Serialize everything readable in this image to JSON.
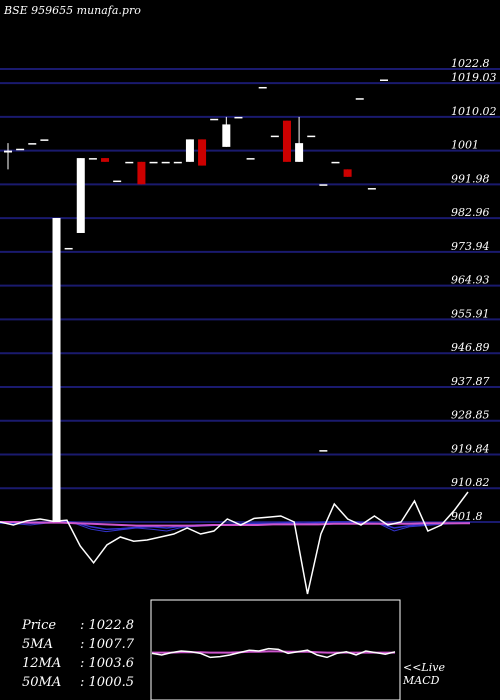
{
  "chart_data": {
    "type": "candlestick",
    "title": "BSE 959655 munafa.pro",
    "ylim": [
      901.8,
      1022.8
    ],
    "y_ticks": [
      "1022.8",
      "1019.03",
      "1010.02",
      "1001",
      "991.98",
      "982.96",
      "973.94",
      "964.93",
      "955.91",
      "946.89",
      "937.87",
      "928.85",
      "919.84",
      "910.82",
      "901.8"
    ],
    "grid": true,
    "colors": {
      "background": "#000000",
      "grid": "#1a1a6e",
      "up": "#ffffff",
      "down": "#cc0000",
      "ma_short": "#3333cc",
      "ma_long": "#cc55cc",
      "macd": "#ffffff"
    },
    "candles": [
      {
        "open": 1000.5,
        "high": 1003.0,
        "low": 996.0,
        "close": 1001.0
      },
      {
        "open": 1001.5,
        "high": 1001.5,
        "low": 1001.5,
        "close": 1001.5
      },
      {
        "open": 1003.0,
        "high": 1003.0,
        "low": 1003.0,
        "close": 1003.0
      },
      {
        "open": 1004.0,
        "high": 1004.0,
        "low": 1004.0,
        "close": 1004.0
      },
      {
        "open": 901.8,
        "high": 983.0,
        "low": 901.8,
        "close": 983.0
      },
      {
        "open": 975.0,
        "high": 975.0,
        "low": 975.0,
        "close": 975.0
      },
      {
        "open": 979.0,
        "high": 999.0,
        "low": 979.0,
        "close": 999.0
      },
      {
        "open": 999.0,
        "high": 999.0,
        "low": 999.0,
        "close": 999.0
      },
      {
        "open": 999.0,
        "high": 999.0,
        "low": 998.0,
        "close": 998.0
      },
      {
        "open": 993.0,
        "high": 993.0,
        "low": 993.0,
        "close": 993.0
      },
      {
        "open": 998.0,
        "high": 998.0,
        "low": 998.0,
        "close": 998.0
      },
      {
        "open": 998.0,
        "high": 998.0,
        "low": 992.0,
        "close": 992.0
      },
      {
        "open": 998.0,
        "high": 998.0,
        "low": 998.0,
        "close": 998.0
      },
      {
        "open": 998.0,
        "high": 998.0,
        "low": 998.0,
        "close": 998.0
      },
      {
        "open": 998.0,
        "high": 998.0,
        "low": 998.0,
        "close": 998.0
      },
      {
        "open": 998.0,
        "high": 1004.0,
        "low": 998.0,
        "close": 1004.0
      },
      {
        "open": 1004.0,
        "high": 1004.0,
        "low": 997.0,
        "close": 997.0
      },
      {
        "open": 1009.5,
        "high": 1009.5,
        "low": 1009.5,
        "close": 1009.5
      },
      {
        "open": 1002.0,
        "high": 1010.0,
        "low": 1002.0,
        "close": 1008.0
      },
      {
        "open": 1010.0,
        "high": 1010.0,
        "low": 1010.0,
        "close": 1010.0
      },
      {
        "open": 999.0,
        "high": 999.0,
        "low": 999.0,
        "close": 999.0
      },
      {
        "open": 1018.0,
        "high": 1018.0,
        "low": 1018.0,
        "close": 1018.0
      },
      {
        "open": 1005.0,
        "high": 1005.0,
        "low": 1005.0,
        "close": 1005.0
      },
      {
        "open": 1009.0,
        "high": 1009.0,
        "low": 998.0,
        "close": 998.0
      },
      {
        "open": 998.0,
        "high": 1010.0,
        "low": 998.0,
        "close": 1003.0
      },
      {
        "open": 1005.0,
        "high": 1005.0,
        "low": 1005.0,
        "close": 1005.0
      },
      {
        "open": 992.0,
        "high": 992.0,
        "low": 992.0,
        "close": 992.0
      },
      {
        "open": 998.0,
        "high": 998.0,
        "low": 998.0,
        "close": 998.0
      },
      {
        "open": 996.0,
        "high": 996.0,
        "low": 994.0,
        "close": 994.0
      },
      {
        "open": 1015.0,
        "high": 1015.0,
        "low": 1015.0,
        "close": 1015.0
      },
      {
        "open": 991.0,
        "high": 991.0,
        "low": 991.0,
        "close": 991.0
      },
      {
        "open": 1020.0,
        "high": 1020.0,
        "low": 1020.0,
        "close": 1020.0
      }
    ],
    "stray_points": [
      {
        "index": 26,
        "value": 921.0
      }
    ],
    "ma_series": [
      {
        "values": [
          -0.2,
          -0.3,
          -0.5,
          -0.2,
          -0.1,
          -0.3,
          -1.2,
          -1.6,
          -1.3,
          -1.0,
          -1.2,
          -1.5,
          -0.9,
          -0.7,
          -0.6,
          -0.5,
          -0.4,
          -0.3,
          -0.2,
          -0.2,
          -0.3,
          -0.1,
          0.0,
          0.0,
          -0.1,
          -0.3,
          -1.5,
          -0.8,
          -0.6,
          -0.4,
          -0.3,
          -0.2
        ]
      },
      {
        "values": [
          -0.1,
          -0.1,
          -0.2,
          -0.1,
          0.1,
          -0.1,
          -0.8,
          -1.2,
          -1.1,
          -0.9,
          -0.8,
          -1.0,
          -0.7,
          -0.5,
          -0.5,
          -0.4,
          -0.3,
          -0.2,
          -0.2,
          -0.1,
          -0.2,
          -0.1,
          0.0,
          0.0,
          -0.1,
          -0.2,
          -1.0,
          -0.6,
          -0.4,
          -0.3,
          -0.2,
          -0.1
        ]
      },
      {
        "values": [
          0.0,
          0.0,
          -0.1,
          -0.1,
          -0.1,
          -0.2,
          -0.3,
          -0.4,
          -0.5,
          -0.6,
          -0.6,
          -0.6,
          -0.6,
          -0.6,
          -0.5,
          -0.5,
          -0.5,
          -0.5,
          -0.4,
          -0.4,
          -0.4,
          -0.4,
          -0.3,
          -0.3,
          -0.3,
          -0.3,
          -0.3,
          -0.3,
          -0.2,
          -0.2,
          -0.2,
          -0.2
        ]
      }
    ],
    "macd_values": [
      0.0,
      -0.5,
      0.2,
      0.5,
      0.1,
      0.3,
      -4.0,
      -6.8,
      -3.8,
      -2.5,
      -3.2,
      -3.0,
      -2.5,
      -2.0,
      -1.0,
      -2.0,
      -1.5,
      0.5,
      -0.5,
      0.6,
      0.8,
      1.0,
      0.0,
      -12.0,
      -2.0,
      3.0,
      0.5,
      -0.5,
      1.0,
      -0.5,
      0.0,
      3.5,
      -1.5,
      -0.5,
      2.0,
      5.0
    ],
    "macd_sub": {
      "macd": [
        0.2,
        0.0,
        0.3,
        0.5,
        0.4,
        0.2,
        -0.3,
        -0.2,
        0.0,
        0.3,
        0.6,
        0.5,
        0.8,
        0.7,
        0.2,
        0.4,
        0.6,
        0.0,
        -0.3,
        0.2,
        0.4,
        0.0,
        0.5,
        0.3,
        0.1,
        0.4
      ],
      "signal": [
        0.3,
        0.3,
        0.3,
        0.35,
        0.35,
        0.35,
        0.3,
        0.3,
        0.3,
        0.35,
        0.4,
        0.4,
        0.45,
        0.45,
        0.4,
        0.4,
        0.4,
        0.35,
        0.3,
        0.3,
        0.3,
        0.3,
        0.3,
        0.3,
        0.3,
        0.3
      ]
    }
  },
  "stats": [
    {
      "label": "Price",
      "value": "1022.8"
    },
    {
      "label": "5MA",
      "value": "1007.7"
    },
    {
      "label": "12MA",
      "value": "1003.6"
    },
    {
      "label": "50MA",
      "value": "1000.5"
    }
  ],
  "macd_label": [
    "<<Live",
    "MACD"
  ]
}
